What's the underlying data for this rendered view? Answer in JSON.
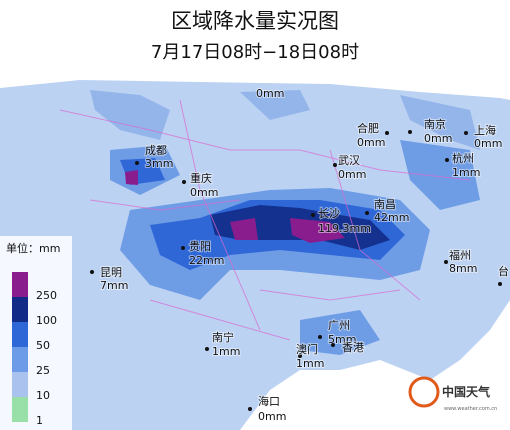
{
  "header": {
    "title": "区域降水量实况图",
    "subtitle": "7月17日08时−18日08时"
  },
  "cities": [
    {
      "name": null,
      "value": "0mm"
    },
    {
      "name": "合肥",
      "value": "0mm"
    },
    {
      "name": "南京",
      "value": "0mm"
    },
    {
      "name": "上海",
      "value": "0mm"
    },
    {
      "name": "成都",
      "value": "3mm"
    },
    {
      "name": "武汉",
      "value": "0mm"
    },
    {
      "name": "杭州",
      "value": "1mm"
    },
    {
      "name": "重庆",
      "value": "0mm"
    },
    {
      "name": "长沙",
      "value": "119.3mm"
    },
    {
      "name": "南昌",
      "value": "42mm"
    },
    {
      "name": "贵阳",
      "value": "22mm"
    },
    {
      "name": "昆明",
      "value": "7mm"
    },
    {
      "name": "福州",
      "value": "8mm"
    },
    {
      "name": "台",
      "value": null
    },
    {
      "name": "南宁",
      "value": "1mm"
    },
    {
      "name": "广州",
      "value": "5mm"
    },
    {
      "name": "澳门",
      "value": "1mm"
    },
    {
      "name": "香港",
      "value": null
    },
    {
      "name": "海口",
      "value": "0mm"
    }
  ],
  "legend": {
    "unit": "单位：mm",
    "levels": [
      "250",
      "100",
      "50",
      "25",
      "10",
      "1"
    ]
  },
  "logo": {
    "text": "中国天气",
    "url": "www.weather.com.cn"
  }
}
